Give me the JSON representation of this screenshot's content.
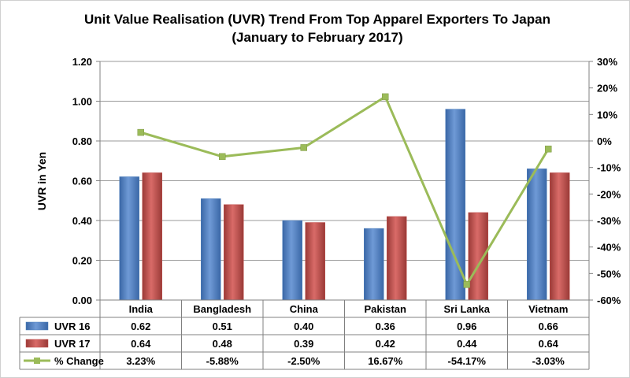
{
  "chart_data": {
    "type": "bar",
    "title_line1": "Unit Value Realisation (UVR) Trend From Top Apparel Exporters To Japan",
    "title_line2": "(January to February 2017)",
    "ylabel": "UVR in Yen",
    "categories": [
      "India",
      "Bangladesh",
      "China",
      "Pakistan",
      "Sri Lanka",
      "Vietnam"
    ],
    "ylim": [
      0,
      1.2
    ],
    "y_ticks": [
      "0.00",
      "0.20",
      "0.40",
      "0.60",
      "0.80",
      "1.00",
      "1.20"
    ],
    "y2lim": [
      -60,
      30
    ],
    "y2_ticks": [
      "-60%",
      "-50%",
      "-40%",
      "-30%",
      "-20%",
      "-10%",
      "0%",
      "10%",
      "20%",
      "30%"
    ],
    "grid": "horizontal",
    "series": [
      {
        "name": "UVR 16",
        "kind": "bar",
        "color": "#4f81bd",
        "values": [
          0.62,
          0.51,
          0.4,
          0.36,
          0.96,
          0.66
        ],
        "labels": [
          "0.62",
          "0.51",
          "0.40",
          "0.36",
          "0.96",
          "0.66"
        ]
      },
      {
        "name": "UVR 17",
        "kind": "bar",
        "color": "#c0504d",
        "values": [
          0.64,
          0.48,
          0.39,
          0.42,
          0.44,
          0.64
        ],
        "labels": [
          "0.64",
          "0.48",
          "0.39",
          "0.42",
          "0.44",
          "0.64"
        ]
      },
      {
        "name": "% Change",
        "kind": "line",
        "axis": "secondary",
        "color": "#9bbb59",
        "values": [
          3.23,
          -5.88,
          -2.5,
          16.67,
          -54.17,
          -3.03
        ],
        "labels": [
          "3.23%",
          "-5.88%",
          "-2.50%",
          "16.67%",
          "-54.17%",
          "-3.03%"
        ]
      }
    ],
    "legend": "data-table"
  }
}
